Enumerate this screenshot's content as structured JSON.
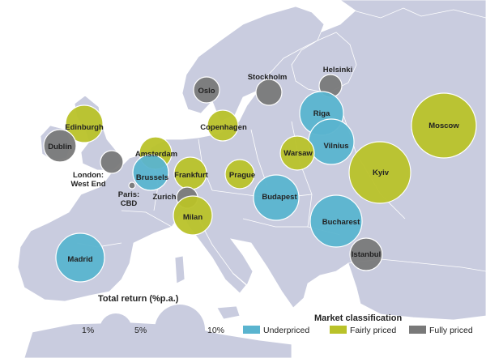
{
  "colors": {
    "sea": "#ffffff",
    "land": "#c9ccdf",
    "border": "#ffffff",
    "underpriced": "#5ab4cf",
    "fairly_priced": "#b9c229",
    "fully_priced": "#797979",
    "size_legend": "#c9ccdf"
  },
  "chart_data": {
    "type": "bubble-map",
    "size_legend": {
      "title": "Total return (%p.a.)",
      "items": [
        {
          "label": "1%",
          "value": 1
        },
        {
          "label": "5%",
          "value": 5
        },
        {
          "label": "10%",
          "value": 10
        }
      ]
    },
    "color_legend": {
      "title": "Market classification",
      "items": [
        {
          "key": "underpriced",
          "label": "Underpriced"
        },
        {
          "key": "fairly_priced",
          "label": "Fairly priced"
        },
        {
          "key": "fully_priced",
          "label": "Fully priced"
        }
      ]
    },
    "cities": [
      {
        "name": "Stockholm",
        "lines": [
          "Stockholm"
        ],
        "class": "fully_priced"
      },
      {
        "name": "Helsinki",
        "lines": [
          "Helsinki"
        ],
        "class": "fully_priced"
      },
      {
        "name": "Oslo",
        "lines": [
          "Oslo"
        ],
        "class": "fully_priced"
      },
      {
        "name": "Riga",
        "lines": [
          "Riga"
        ],
        "class": "underpriced"
      },
      {
        "name": "Vilnius",
        "lines": [
          "Vilnius"
        ],
        "class": "underpriced"
      },
      {
        "name": "Moscow",
        "lines": [
          "Moscow"
        ],
        "class": "fairly_priced"
      },
      {
        "name": "Edinburgh",
        "lines": [
          "Edinburgh"
        ],
        "class": "fairly_priced"
      },
      {
        "name": "Copenhagen",
        "lines": [
          "Copenhagen"
        ],
        "class": "fairly_priced"
      },
      {
        "name": "Dublin",
        "lines": [
          "Dublin"
        ],
        "class": "fully_priced"
      },
      {
        "name": "Amsterdam",
        "lines": [
          "Amsterdam"
        ],
        "class": "fairly_priced"
      },
      {
        "name": "Warsaw",
        "lines": [
          "Warsaw"
        ],
        "class": "fairly_priced"
      },
      {
        "name": "Kyiv",
        "lines": [
          "Kyiv"
        ],
        "class": "fairly_priced"
      },
      {
        "name": "London: West End",
        "lines": [
          "London:",
          "West End"
        ],
        "class": "fully_priced"
      },
      {
        "name": "Brussels",
        "lines": [
          "Brussels"
        ],
        "class": "underpriced"
      },
      {
        "name": "Frankfurt",
        "lines": [
          "Frankfurt"
        ],
        "class": "fairly_priced"
      },
      {
        "name": "Prague",
        "lines": [
          "Prague"
        ],
        "class": "fairly_priced"
      },
      {
        "name": "Paris: CBD",
        "lines": [
          "Paris:",
          "CBD"
        ],
        "class": "fully_priced"
      },
      {
        "name": "Zurich",
        "lines": [
          "Zurich"
        ],
        "class": "fully_priced"
      },
      {
        "name": "Milan",
        "lines": [
          "Milan"
        ],
        "class": "fairly_priced"
      },
      {
        "name": "Budapest",
        "lines": [
          "Budapest"
        ],
        "class": "underpriced"
      },
      {
        "name": "Bucharest",
        "lines": [
          "Bucharest"
        ],
        "class": "underpriced"
      },
      {
        "name": "Istanbul",
        "lines": [
          "Istanbul"
        ],
        "class": "fully_priced"
      },
      {
        "name": "Madrid",
        "lines": [
          "Madrid"
        ],
        "class": "underpriced"
      }
    ]
  }
}
